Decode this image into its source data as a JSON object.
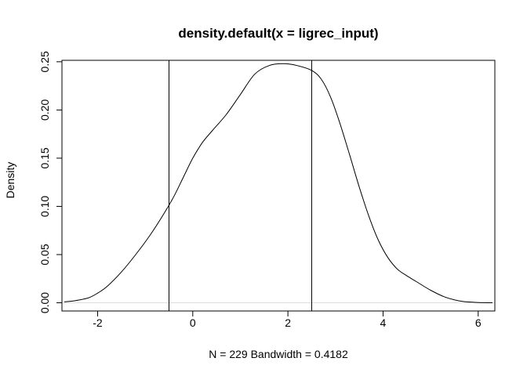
{
  "chart_data": {
    "type": "line",
    "title": "density.default(x = ligrec_input)",
    "xlabel": "N = 229   Bandwidth = 0.4182",
    "ylabel": "Density",
    "xlim": [
      -2.75,
      6.35
    ],
    "ylim": [
      -0.0085,
      0.2515
    ],
    "x_ticks": [
      "-2",
      "0",
      "2",
      "4",
      "6"
    ],
    "y_ticks": [
      "0.00",
      "0.05",
      "0.10",
      "0.15",
      "0.20",
      "0.25"
    ],
    "grid": false,
    "series": [
      {
        "x": [
          -2.7,
          -2.5,
          -2.2,
          -2.0,
          -1.8,
          -1.5,
          -1.2,
          -0.9,
          -0.6,
          -0.4,
          -0.2,
          0.0,
          0.2,
          0.4,
          0.7,
          1.0,
          1.3,
          1.6,
          1.9,
          2.2,
          2.5,
          2.7,
          2.9,
          3.1,
          3.3,
          3.5,
          3.7,
          3.9,
          4.1,
          4.3,
          4.5,
          4.7,
          5.0,
          5.3,
          5.6,
          5.9,
          6.1,
          6.3
        ],
        "y": [
          0.001,
          0.002,
          0.005,
          0.01,
          0.017,
          0.032,
          0.05,
          0.07,
          0.093,
          0.11,
          0.13,
          0.15,
          0.166,
          0.178,
          0.195,
          0.216,
          0.237,
          0.246,
          0.248,
          0.246,
          0.241,
          0.232,
          0.213,
          0.185,
          0.153,
          0.12,
          0.09,
          0.065,
          0.047,
          0.035,
          0.028,
          0.022,
          0.013,
          0.006,
          0.002,
          0.0005,
          0.0001,
          0.0
        ]
      }
    ],
    "vlines": [
      -0.5,
      2.5
    ],
    "zero_line": 0.0
  }
}
